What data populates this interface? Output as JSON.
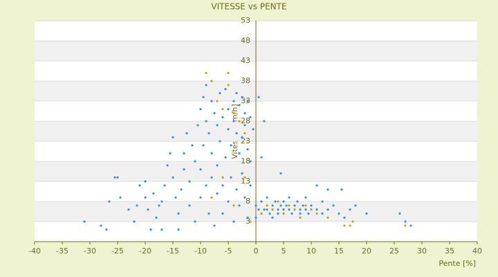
{
  "chart_data": {
    "type": "scatter",
    "title": "VITESSE vs PENTE",
    "x_label": "Pente [%]",
    "y_label": "Vitesse [km/h]",
    "xlim": [
      -40,
      40
    ],
    "xticks": [
      -40,
      -35,
      -30,
      -25,
      -20,
      -15,
      -10,
      -5,
      0,
      5,
      10,
      15,
      20,
      25,
      30,
      35,
      40
    ],
    "ylim": [
      -2,
      53
    ],
    "yticks": [
      3,
      8,
      13,
      18,
      23,
      28,
      33,
      38,
      43,
      48,
      53
    ],
    "series": [
      {
        "color": "#3a8fe0",
        "x": [
          -31,
          -28,
          -27,
          -26.5,
          -25.5,
          -25,
          -24.5,
          -23,
          -22,
          -21.5,
          -21,
          -20,
          -20,
          -19.5,
          -19,
          -18.5,
          -18,
          -17.5,
          -17,
          -17,
          -16.5,
          -16,
          -15.5,
          -15,
          -15,
          -14.5,
          -14,
          -14,
          -13.5,
          -13,
          -13,
          -12.5,
          -12,
          -12,
          -11.5,
          -11,
          -11,
          -10.5,
          -10,
          -10,
          -10,
          -9.5,
          -9.5,
          -9,
          -9,
          -9,
          -8.5,
          -8.5,
          -8,
          -8,
          -8,
          -7.5,
          -7.5,
          -7,
          -7,
          -7,
          -6.5,
          -6.5,
          -6,
          -6,
          -6,
          -5.5,
          -5.5,
          -5,
          -5,
          -5,
          -4.5,
          -4.5,
          -4,
          -4,
          -4,
          -3.5,
          -3.5,
          -3.5,
          -3,
          -3,
          -3,
          -2.5,
          -2.5,
          -2.5,
          -2,
          -2,
          -2,
          -1.5,
          -1.5,
          -1.5,
          -1,
          -1,
          -1,
          -0.5,
          0,
          0,
          0.5,
          0.5,
          1,
          1,
          1.5,
          1,
          1.5,
          2,
          2,
          2.5,
          3,
          3,
          3,
          3.5,
          4,
          4,
          4.5,
          4.5,
          5,
          5,
          5,
          5.5,
          6,
          6,
          6.5,
          7,
          7,
          7.5,
          8,
          8,
          8.5,
          9,
          9,
          9.5,
          10,
          10,
          11,
          11,
          12,
          12,
          13,
          13,
          14,
          15,
          15.5,
          16,
          17,
          18,
          20,
          26,
          27,
          28
        ],
        "values": [
          3,
          2,
          1,
          8,
          14,
          14,
          9,
          6,
          3,
          7,
          12,
          13,
          9,
          6,
          1,
          10,
          4,
          7,
          8,
          1,
          12,
          17,
          20,
          24,
          14,
          9,
          5,
          1,
          11,
          20,
          16,
          25,
          13,
          7,
          22,
          18,
          3,
          27,
          31,
          16,
          9,
          34,
          22,
          37,
          28,
          12,
          25,
          5,
          33,
          20,
          14,
          30,
          2,
          27,
          17,
          10,
          35,
          23,
          29,
          12,
          5,
          36,
          19,
          31,
          26,
          8,
          22,
          14,
          33,
          28,
          3,
          35,
          25,
          11,
          32,
          20,
          7,
          34,
          24,
          15,
          30,
          27,
          9,
          33,
          21,
          4,
          29,
          18,
          12,
          26,
          7,
          4,
          34,
          6,
          8,
          5,
          6,
          19,
          28,
          6,
          9,
          5,
          7,
          6,
          4,
          8,
          6,
          5,
          7,
          15,
          6,
          8,
          5,
          7,
          6,
          9,
          5,
          7,
          6,
          8,
          6,
          5,
          7,
          6,
          9,
          5,
          7,
          6,
          6,
          12,
          5,
          8,
          11,
          6,
          7,
          5,
          11,
          4,
          6,
          7,
          5,
          5,
          3,
          2
        ]
      },
      {
        "color": "#b9a51e",
        "x": [
          -9,
          -8,
          -7,
          -6,
          -5,
          -5,
          -4,
          -3,
          -2,
          -2,
          -6,
          -8,
          -4,
          -1,
          1,
          2,
          3,
          4,
          5,
          6,
          7,
          8,
          9,
          10,
          11,
          13,
          16,
          17,
          17.5,
          27
        ],
        "values": [
          40,
          38,
          33,
          31,
          40,
          37,
          30,
          28,
          25,
          14,
          14,
          9,
          7,
          3,
          5,
          7,
          6,
          8,
          5,
          7,
          6,
          4,
          7,
          6,
          5,
          4,
          2,
          2,
          3,
          2
        ]
      }
    ]
  }
}
